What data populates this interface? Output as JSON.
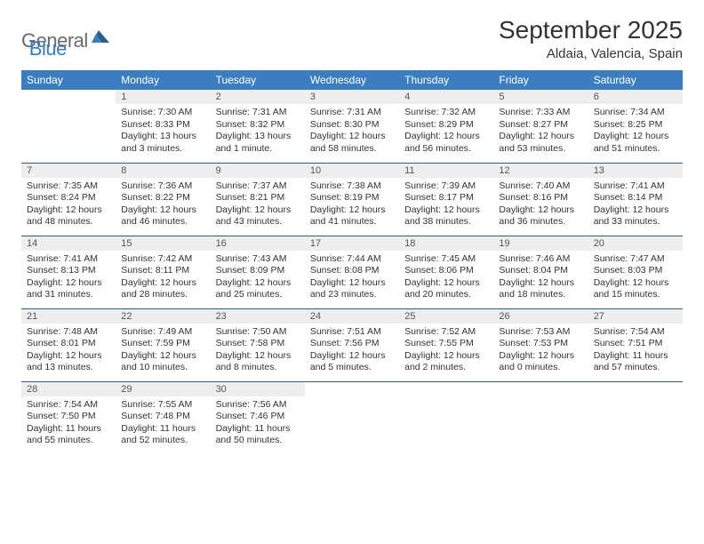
{
  "logo": {
    "general": "General",
    "blue": "Blue"
  },
  "title": "September 2025",
  "location": "Aldaia, Valencia, Spain",
  "colors": {
    "header_bg": "#3a7ebf",
    "header_text": "#ffffff",
    "daynum_bg": "#eeeeee",
    "border": "#2e5f8a",
    "logo_gray": "#6b6b6b",
    "logo_blue": "#3a7bbf"
  },
  "weekdays": [
    "Sunday",
    "Monday",
    "Tuesday",
    "Wednesday",
    "Thursday",
    "Friday",
    "Saturday"
  ],
  "weeks": [
    [
      null,
      {
        "n": "1",
        "sr": "Sunrise: 7:30 AM",
        "ss": "Sunset: 8:33 PM",
        "dl": "Daylight: 13 hours and 3 minutes."
      },
      {
        "n": "2",
        "sr": "Sunrise: 7:31 AM",
        "ss": "Sunset: 8:32 PM",
        "dl": "Daylight: 13 hours and 1 minute."
      },
      {
        "n": "3",
        "sr": "Sunrise: 7:31 AM",
        "ss": "Sunset: 8:30 PM",
        "dl": "Daylight: 12 hours and 58 minutes."
      },
      {
        "n": "4",
        "sr": "Sunrise: 7:32 AM",
        "ss": "Sunset: 8:29 PM",
        "dl": "Daylight: 12 hours and 56 minutes."
      },
      {
        "n": "5",
        "sr": "Sunrise: 7:33 AM",
        "ss": "Sunset: 8:27 PM",
        "dl": "Daylight: 12 hours and 53 minutes."
      },
      {
        "n": "6",
        "sr": "Sunrise: 7:34 AM",
        "ss": "Sunset: 8:25 PM",
        "dl": "Daylight: 12 hours and 51 minutes."
      }
    ],
    [
      {
        "n": "7",
        "sr": "Sunrise: 7:35 AM",
        "ss": "Sunset: 8:24 PM",
        "dl": "Daylight: 12 hours and 48 minutes."
      },
      {
        "n": "8",
        "sr": "Sunrise: 7:36 AM",
        "ss": "Sunset: 8:22 PM",
        "dl": "Daylight: 12 hours and 46 minutes."
      },
      {
        "n": "9",
        "sr": "Sunrise: 7:37 AM",
        "ss": "Sunset: 8:21 PM",
        "dl": "Daylight: 12 hours and 43 minutes."
      },
      {
        "n": "10",
        "sr": "Sunrise: 7:38 AM",
        "ss": "Sunset: 8:19 PM",
        "dl": "Daylight: 12 hours and 41 minutes."
      },
      {
        "n": "11",
        "sr": "Sunrise: 7:39 AM",
        "ss": "Sunset: 8:17 PM",
        "dl": "Daylight: 12 hours and 38 minutes."
      },
      {
        "n": "12",
        "sr": "Sunrise: 7:40 AM",
        "ss": "Sunset: 8:16 PM",
        "dl": "Daylight: 12 hours and 36 minutes."
      },
      {
        "n": "13",
        "sr": "Sunrise: 7:41 AM",
        "ss": "Sunset: 8:14 PM",
        "dl": "Daylight: 12 hours and 33 minutes."
      }
    ],
    [
      {
        "n": "14",
        "sr": "Sunrise: 7:41 AM",
        "ss": "Sunset: 8:13 PM",
        "dl": "Daylight: 12 hours and 31 minutes."
      },
      {
        "n": "15",
        "sr": "Sunrise: 7:42 AM",
        "ss": "Sunset: 8:11 PM",
        "dl": "Daylight: 12 hours and 28 minutes."
      },
      {
        "n": "16",
        "sr": "Sunrise: 7:43 AM",
        "ss": "Sunset: 8:09 PM",
        "dl": "Daylight: 12 hours and 25 minutes."
      },
      {
        "n": "17",
        "sr": "Sunrise: 7:44 AM",
        "ss": "Sunset: 8:08 PM",
        "dl": "Daylight: 12 hours and 23 minutes."
      },
      {
        "n": "18",
        "sr": "Sunrise: 7:45 AM",
        "ss": "Sunset: 8:06 PM",
        "dl": "Daylight: 12 hours and 20 minutes."
      },
      {
        "n": "19",
        "sr": "Sunrise: 7:46 AM",
        "ss": "Sunset: 8:04 PM",
        "dl": "Daylight: 12 hours and 18 minutes."
      },
      {
        "n": "20",
        "sr": "Sunrise: 7:47 AM",
        "ss": "Sunset: 8:03 PM",
        "dl": "Daylight: 12 hours and 15 minutes."
      }
    ],
    [
      {
        "n": "21",
        "sr": "Sunrise: 7:48 AM",
        "ss": "Sunset: 8:01 PM",
        "dl": "Daylight: 12 hours and 13 minutes."
      },
      {
        "n": "22",
        "sr": "Sunrise: 7:49 AM",
        "ss": "Sunset: 7:59 PM",
        "dl": "Daylight: 12 hours and 10 minutes."
      },
      {
        "n": "23",
        "sr": "Sunrise: 7:50 AM",
        "ss": "Sunset: 7:58 PM",
        "dl": "Daylight: 12 hours and 8 minutes."
      },
      {
        "n": "24",
        "sr": "Sunrise: 7:51 AM",
        "ss": "Sunset: 7:56 PM",
        "dl": "Daylight: 12 hours and 5 minutes."
      },
      {
        "n": "25",
        "sr": "Sunrise: 7:52 AM",
        "ss": "Sunset: 7:55 PM",
        "dl": "Daylight: 12 hours and 2 minutes."
      },
      {
        "n": "26",
        "sr": "Sunrise: 7:53 AM",
        "ss": "Sunset: 7:53 PM",
        "dl": "Daylight: 12 hours and 0 minutes."
      },
      {
        "n": "27",
        "sr": "Sunrise: 7:54 AM",
        "ss": "Sunset: 7:51 PM",
        "dl": "Daylight: 11 hours and 57 minutes."
      }
    ],
    [
      {
        "n": "28",
        "sr": "Sunrise: 7:54 AM",
        "ss": "Sunset: 7:50 PM",
        "dl": "Daylight: 11 hours and 55 minutes."
      },
      {
        "n": "29",
        "sr": "Sunrise: 7:55 AM",
        "ss": "Sunset: 7:48 PM",
        "dl": "Daylight: 11 hours and 52 minutes."
      },
      {
        "n": "30",
        "sr": "Sunrise: 7:56 AM",
        "ss": "Sunset: 7:46 PM",
        "dl": "Daylight: 11 hours and 50 minutes."
      },
      null,
      null,
      null,
      null
    ]
  ]
}
